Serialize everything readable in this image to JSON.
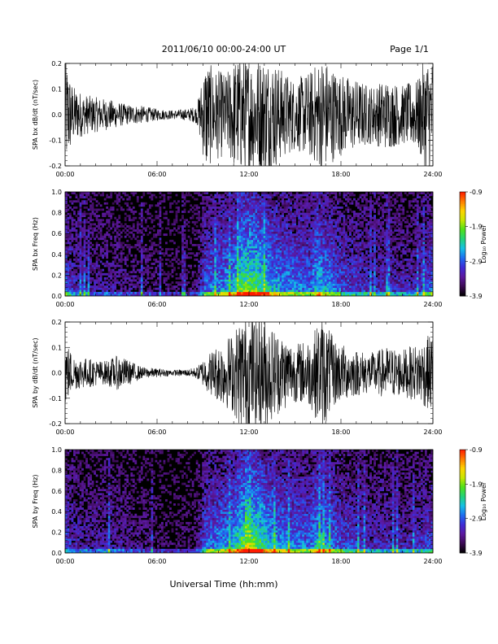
{
  "page": {
    "title": "2011/06/10  00:00-24:00 UT",
    "page_label": "Page 1/1",
    "xlabel": "Universal Time (hh:mm)"
  },
  "colors": {
    "background": "#ffffff",
    "axis": "#000000",
    "trace": "#000000",
    "colormap": [
      "#000000",
      "#3a0a52",
      "#5c189e",
      "#3f2bd6",
      "#1e6cf0",
      "#15c0e6",
      "#22d27a",
      "#4ee11a",
      "#c8e600",
      "#ffd400",
      "#ff7a00",
      "#ff1a00"
    ]
  },
  "chart_data": [
    {
      "type": "line",
      "ylabel": "SPA bx dB/dt (nT/sec)",
      "x_ticks": [
        "00:00",
        "06:00",
        "12:00",
        "18:00",
        "24:00"
      ],
      "xlim": [
        0,
        24
      ],
      "ylim": [
        -0.2,
        0.2
      ],
      "y_ticks": [
        "-0.2",
        "-0.1",
        "0.0",
        "0.1",
        "0.2"
      ],
      "y_tick_values": [
        -0.2,
        -0.1,
        0.0,
        0.1,
        0.2
      ],
      "amplitude_envelope": {
        "hours": [
          0,
          0.5,
          1.2,
          2,
          3,
          4,
          5,
          6,
          7,
          8,
          8.6,
          9.2,
          9.6,
          10.5,
          11.2,
          11.5,
          12,
          12.5,
          13,
          13.5,
          14,
          15,
          16,
          16.8,
          17.5,
          18,
          19,
          20,
          21,
          22,
          23,
          23.5,
          24
        ],
        "values": [
          0.2,
          0.1,
          0.07,
          0.06,
          0.05,
          0.035,
          0.03,
          0.02,
          0.015,
          0.02,
          0.03,
          0.2,
          0.16,
          0.14,
          0.2,
          0.2,
          0.2,
          0.2,
          0.2,
          0.2,
          0.16,
          0.12,
          0.15,
          0.2,
          0.16,
          0.14,
          0.12,
          0.1,
          0.12,
          0.1,
          0.12,
          0.2,
          0.2
        ]
      }
    },
    {
      "type": "heatmap",
      "ylabel": "SPA bx Freq (Hz)",
      "x_ticks": [
        "00:00",
        "06:00",
        "12:00",
        "18:00",
        "24:00"
      ],
      "xlim": [
        0,
        24
      ],
      "ylim": [
        0,
        1.0
      ],
      "y_ticks": [
        "0.0",
        "0.2",
        "0.4",
        "0.6",
        "0.8",
        "1.0"
      ],
      "y_tick_values": [
        0,
        0.2,
        0.4,
        0.6,
        0.8,
        1.0
      ],
      "colorbar_label": "Log₁₀ Power",
      "colorbar_ticks": [
        "-0.9",
        "-1.9",
        "-2.9",
        "-3.9"
      ],
      "colorbar_tick_values": [
        -0.9,
        -1.9,
        -2.9,
        -3.9
      ],
      "color_range": [
        -3.9,
        -0.9
      ],
      "activity_profile": {
        "hours": [
          0,
          0.5,
          1.5,
          3,
          5,
          7,
          8.5,
          9.2,
          10,
          11,
          11.5,
          12,
          12.5,
          13,
          14,
          15,
          16,
          16.5,
          17,
          18,
          19,
          20,
          21,
          22,
          23,
          24
        ],
        "values": [
          0.45,
          0.3,
          0.22,
          0.2,
          0.15,
          0.1,
          0.12,
          0.45,
          0.5,
          0.6,
          0.8,
          0.85,
          0.8,
          0.7,
          0.55,
          0.5,
          0.45,
          0.65,
          0.55,
          0.4,
          0.35,
          0.3,
          0.3,
          0.28,
          0.3,
          0.45
        ]
      }
    },
    {
      "type": "line",
      "ylabel": "SPA by dB/dt (nT/sec)",
      "x_ticks": [
        "00:00",
        "06:00",
        "12:00",
        "18:00",
        "24:00"
      ],
      "xlim": [
        0,
        24
      ],
      "ylim": [
        -0.2,
        0.2
      ],
      "y_ticks": [
        "-0.2",
        "-0.1",
        "0.0",
        "0.1",
        "0.2"
      ],
      "y_tick_values": [
        -0.2,
        -0.1,
        0.0,
        0.1,
        0.2
      ],
      "amplitude_envelope": {
        "hours": [
          0,
          0.5,
          1.5,
          2.5,
          3.5,
          5,
          6,
          7,
          8,
          8.6,
          9.2,
          10,
          11,
          11.5,
          12,
          12.5,
          13,
          13.5,
          14,
          15,
          16,
          16.8,
          17.5,
          18,
          19,
          20,
          21,
          22,
          23,
          24
        ],
        "values": [
          0.12,
          0.06,
          0.05,
          0.04,
          0.06,
          0.02,
          0.015,
          0.01,
          0.012,
          0.02,
          0.06,
          0.1,
          0.14,
          0.2,
          0.2,
          0.2,
          0.2,
          0.16,
          0.14,
          0.1,
          0.12,
          0.2,
          0.12,
          0.1,
          0.08,
          0.07,
          0.09,
          0.08,
          0.1,
          0.14
        ]
      }
    },
    {
      "type": "heatmap",
      "ylabel": "SPA by Freq (Hz)",
      "x_ticks": [
        "00:00",
        "06:00",
        "12:00",
        "18:00",
        "24:00"
      ],
      "xlim": [
        0,
        24
      ],
      "ylim": [
        0,
        1.0
      ],
      "y_ticks": [
        "0.0",
        "0.2",
        "0.4",
        "0.6",
        "0.8",
        "1.0"
      ],
      "y_tick_values": [
        0,
        0.2,
        0.4,
        0.6,
        0.8,
        1.0
      ],
      "colorbar_label": "Log₁₀ Power",
      "colorbar_ticks": [
        "-0.9",
        "-1.9",
        "-2.9",
        "-3.9"
      ],
      "colorbar_tick_values": [
        -0.9,
        -1.9,
        -2.9,
        -3.9
      ],
      "color_range": [
        -3.9,
        -0.9
      ],
      "activity_profile": {
        "hours": [
          0,
          0.5,
          1.5,
          3,
          5,
          7,
          8.5,
          9.2,
          10,
          11,
          11.5,
          12,
          12.5,
          13,
          14,
          15,
          16,
          16.5,
          17,
          18,
          19,
          20,
          21,
          22,
          23,
          24
        ],
        "values": [
          0.4,
          0.28,
          0.22,
          0.25,
          0.15,
          0.1,
          0.12,
          0.45,
          0.5,
          0.6,
          0.8,
          0.85,
          0.82,
          0.7,
          0.55,
          0.5,
          0.45,
          0.65,
          0.55,
          0.4,
          0.35,
          0.3,
          0.3,
          0.28,
          0.3,
          0.4
        ]
      }
    }
  ]
}
